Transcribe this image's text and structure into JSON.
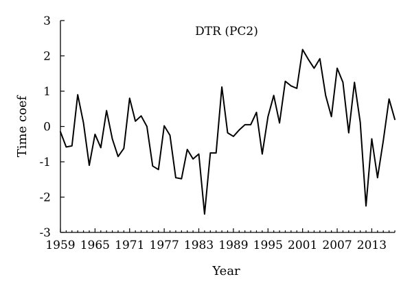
{
  "chart_data": {
    "type": "line",
    "title": "DTR (PC2)",
    "xlabel": "Year",
    "ylabel": "Time coef",
    "xlim": [
      1959,
      2017
    ],
    "ylim": [
      -3,
      3
    ],
    "xticks": [
      1959,
      1965,
      1971,
      1977,
      1983,
      1989,
      1995,
      2001,
      2007,
      2013
    ],
    "yticks": [
      -3,
      -2,
      -1,
      0,
      1,
      2,
      3
    ],
    "grid": false,
    "legend": "none",
    "series": [
      {
        "color": "#000000",
        "x": [
          1959,
          1960,
          1961,
          1962,
          1963,
          1964,
          1965,
          1966,
          1967,
          1968,
          1969,
          1970,
          1971,
          1972,
          1973,
          1974,
          1975,
          1976,
          1977,
          1978,
          1979,
          1980,
          1981,
          1982,
          1983,
          1984,
          1985,
          1986,
          1987,
          1988,
          1989,
          1990,
          1991,
          1992,
          1993,
          1994,
          1995,
          1996,
          1997,
          1998,
          1999,
          2000,
          2001,
          2002,
          2003,
          2004,
          2005,
          2006,
          2007,
          2008,
          2009,
          2010,
          2011,
          2012,
          2013,
          2014,
          2015,
          2016,
          2017
        ],
        "y": [
          -0.15,
          -0.58,
          -0.55,
          0.9,
          0.1,
          -1.1,
          -0.22,
          -0.6,
          0.45,
          -0.35,
          -0.85,
          -0.62,
          0.8,
          0.15,
          0.3,
          0.0,
          -1.12,
          -1.22,
          0.02,
          -0.25,
          -1.45,
          -1.48,
          -0.65,
          -0.92,
          -0.78,
          -2.48,
          -0.75,
          -0.75,
          1.12,
          -0.18,
          -0.28,
          -0.1,
          0.05,
          0.05,
          0.4,
          -0.78,
          0.28,
          0.88,
          0.1,
          1.28,
          1.15,
          1.08,
          2.18,
          1.9,
          1.65,
          1.92,
          0.88,
          0.28,
          1.65,
          1.25,
          -0.18,
          1.25,
          0.12,
          -2.25,
          -0.35,
          -1.45,
          -0.4,
          0.78,
          0.2
        ]
      }
    ]
  }
}
